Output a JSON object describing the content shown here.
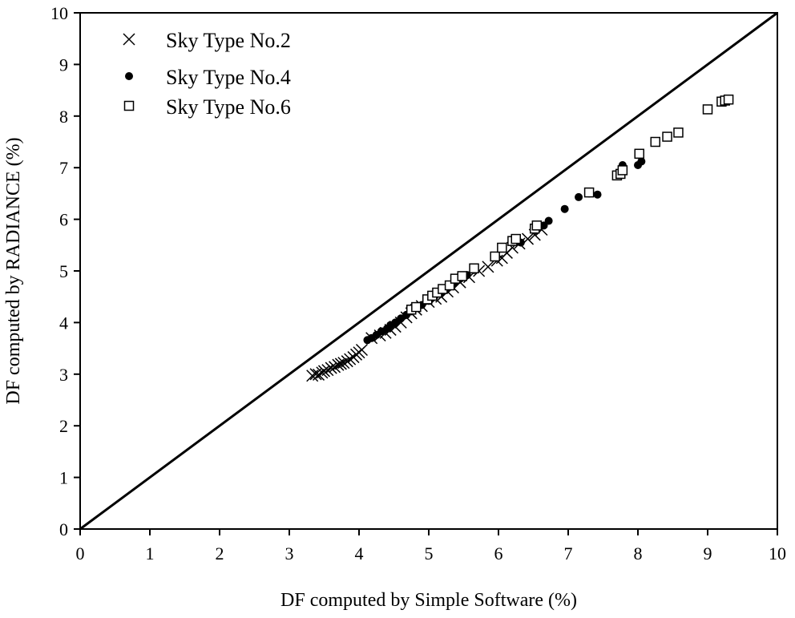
{
  "chart_data": {
    "type": "scatter",
    "xlabel": "DF computed by Simple Software (%)",
    "ylabel": "DF computed by RADIANCE (%)",
    "xlim": [
      0,
      10
    ],
    "ylim": [
      0,
      10
    ],
    "xticks": [
      0,
      1,
      2,
      3,
      4,
      5,
      6,
      7,
      8,
      9,
      10
    ],
    "yticks": [
      0,
      1,
      2,
      3,
      4,
      5,
      6,
      7,
      8,
      9,
      10
    ],
    "xtick_labels": [
      "0",
      "1",
      "2",
      "3",
      "4",
      "5",
      "6",
      "7",
      "8",
      "9",
      "10"
    ],
    "ytick_labels": [
      "0",
      "1",
      "2",
      "3",
      "4",
      "5",
      "6",
      "7",
      "8",
      "9",
      "10"
    ],
    "grid": false,
    "legend_position": "top-left",
    "reference_line": {
      "x": [
        0,
        10
      ],
      "y": [
        0,
        10
      ]
    },
    "series": [
      {
        "name": "Sky Type No.2",
        "marker": "x",
        "points": [
          [
            3.33,
            2.97
          ],
          [
            3.38,
            3.0
          ],
          [
            3.42,
            2.99
          ],
          [
            3.47,
            3.03
          ],
          [
            3.5,
            3.06
          ],
          [
            3.55,
            3.08
          ],
          [
            3.6,
            3.12
          ],
          [
            3.65,
            3.14
          ],
          [
            3.7,
            3.18
          ],
          [
            3.74,
            3.2
          ],
          [
            3.78,
            3.22
          ],
          [
            3.83,
            3.25
          ],
          [
            3.87,
            3.29
          ],
          [
            3.92,
            3.33
          ],
          [
            3.96,
            3.38
          ],
          [
            4.0,
            3.42
          ],
          [
            4.04,
            3.47
          ],
          [
            4.18,
            3.7
          ],
          [
            4.3,
            3.75
          ],
          [
            4.38,
            3.8
          ],
          [
            4.45,
            3.86
          ],
          [
            4.52,
            3.92
          ],
          [
            4.6,
            4.0
          ],
          [
            4.68,
            4.1
          ],
          [
            4.75,
            4.18
          ],
          [
            4.82,
            4.25
          ],
          [
            4.9,
            4.32
          ],
          [
            5.0,
            4.4
          ],
          [
            5.1,
            4.46
          ],
          [
            5.18,
            4.5
          ],
          [
            5.27,
            4.6
          ],
          [
            5.35,
            4.68
          ],
          [
            5.45,
            4.78
          ],
          [
            5.58,
            4.88
          ],
          [
            5.72,
            5.0
          ],
          [
            5.85,
            5.08
          ],
          [
            5.98,
            5.2
          ],
          [
            6.05,
            5.25
          ],
          [
            6.12,
            5.35
          ],
          [
            6.2,
            5.45
          ],
          [
            6.3,
            5.53
          ],
          [
            6.42,
            5.62
          ],
          [
            6.52,
            5.7
          ],
          [
            6.62,
            5.8
          ]
        ]
      },
      {
        "name": "Sky Type No.4",
        "marker": "filled-circle",
        "points": [
          [
            4.12,
            3.66
          ],
          [
            4.18,
            3.7
          ],
          [
            4.25,
            3.76
          ],
          [
            4.32,
            3.83
          ],
          [
            4.4,
            3.88
          ],
          [
            4.45,
            3.95
          ],
          [
            4.52,
            4.0
          ],
          [
            4.6,
            4.08
          ],
          [
            4.68,
            4.15
          ],
          [
            4.75,
            4.22
          ],
          [
            4.82,
            4.28
          ],
          [
            4.9,
            4.34
          ],
          [
            5.0,
            4.42
          ],
          [
            5.08,
            4.5
          ],
          [
            5.15,
            4.58
          ],
          [
            5.22,
            4.62
          ],
          [
            5.3,
            4.7
          ],
          [
            5.38,
            4.78
          ],
          [
            5.45,
            4.85
          ],
          [
            5.55,
            4.92
          ],
          [
            5.65,
            5.02
          ],
          [
            6.32,
            5.55
          ],
          [
            6.65,
            5.88
          ],
          [
            6.72,
            5.97
          ],
          [
            6.95,
            6.2
          ],
          [
            7.15,
            6.43
          ],
          [
            7.3,
            6.5
          ],
          [
            7.42,
            6.48
          ],
          [
            7.78,
            7.05
          ],
          [
            8.0,
            7.05
          ],
          [
            8.05,
            7.12
          ]
        ]
      },
      {
        "name": "Sky Type No.6",
        "marker": "open-square",
        "points": [
          [
            4.75,
            4.25
          ],
          [
            4.82,
            4.3
          ],
          [
            4.98,
            4.45
          ],
          [
            5.05,
            4.52
          ],
          [
            5.12,
            4.58
          ],
          [
            5.2,
            4.65
          ],
          [
            5.3,
            4.72
          ],
          [
            5.38,
            4.85
          ],
          [
            5.48,
            4.9
          ],
          [
            5.65,
            5.05
          ],
          [
            5.95,
            5.28
          ],
          [
            6.05,
            5.45
          ],
          [
            6.2,
            5.58
          ],
          [
            6.25,
            5.62
          ],
          [
            6.52,
            5.82
          ],
          [
            6.55,
            5.88
          ],
          [
            7.3,
            6.52
          ],
          [
            7.7,
            6.85
          ],
          [
            7.75,
            6.88
          ],
          [
            7.78,
            6.95
          ],
          [
            8.02,
            7.27
          ],
          [
            8.25,
            7.5
          ],
          [
            8.42,
            7.6
          ],
          [
            8.58,
            7.68
          ],
          [
            9.0,
            8.13
          ],
          [
            9.2,
            8.28
          ],
          [
            9.25,
            8.3
          ],
          [
            9.3,
            8.32
          ]
        ]
      }
    ]
  }
}
